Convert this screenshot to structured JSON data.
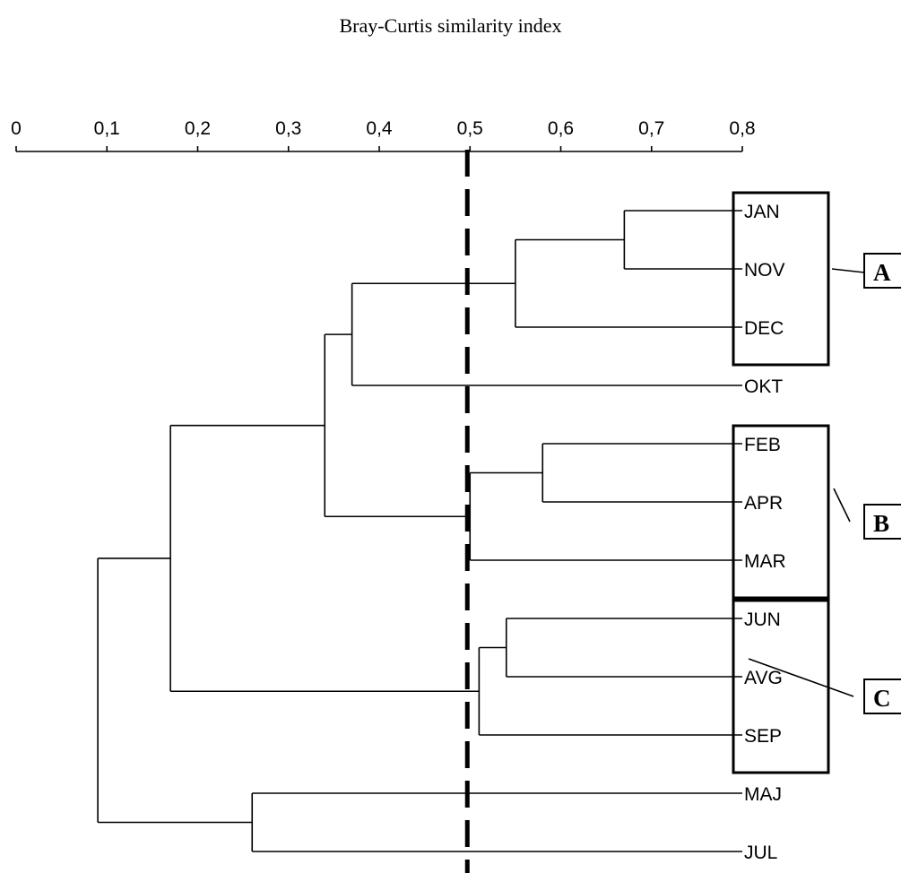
{
  "title": "Bray-Curtis similarity index",
  "chart_data": {
    "type": "dendrogram",
    "axis": {
      "range": [
        0,
        0.8
      ],
      "ticks": [
        0,
        0.1,
        0.2,
        0.3,
        0.4,
        0.5,
        0.6,
        0.7,
        0.8
      ],
      "tick_labels": [
        "0",
        "0,1",
        "0,2",
        "0,3",
        "0,4",
        "0,5",
        "0,6",
        "0,7",
        "0,8"
      ]
    },
    "leaves": [
      "JAN",
      "NOV",
      "DEC",
      "OKT",
      "FEB",
      "APR",
      "MAR",
      "JUN",
      "AVG",
      "SEP",
      "MAJ",
      "JUL"
    ],
    "merges": [
      {
        "members": [
          "JAN",
          "NOV"
        ],
        "similarity": 0.67
      },
      {
        "members": [
          "JAN",
          "NOV",
          "DEC"
        ],
        "similarity": 0.55
      },
      {
        "members": [
          "JAN",
          "NOV",
          "DEC",
          "OKT"
        ],
        "similarity": 0.37
      },
      {
        "members": [
          "FEB",
          "APR"
        ],
        "similarity": 0.58
      },
      {
        "members": [
          "FEB",
          "APR",
          "MAR"
        ],
        "similarity": 0.5
      },
      {
        "members": [
          "JAN",
          "NOV",
          "DEC",
          "OKT",
          "FEB",
          "APR",
          "MAR"
        ],
        "similarity": 0.34
      },
      {
        "members": [
          "JUN",
          "AVG"
        ],
        "similarity": 0.54
      },
      {
        "members": [
          "JUN",
          "AVG",
          "SEP"
        ],
        "similarity": 0.51
      },
      {
        "members": [
          "JAN",
          "NOV",
          "DEC",
          "OKT",
          "FEB",
          "APR",
          "MAR",
          "JUN",
          "AVG",
          "SEP"
        ],
        "similarity": 0.17
      },
      {
        "members": [
          "MAJ",
          "JUL"
        ],
        "similarity": 0.26
      },
      {
        "members": [
          "JAN",
          "NOV",
          "DEC",
          "OKT",
          "FEB",
          "APR",
          "MAR",
          "JUN",
          "AVG",
          "SEP",
          "MAJ",
          "JUL"
        ],
        "similarity": 0.09
      }
    ],
    "cutoff": 0.5,
    "groups": [
      {
        "label": "A",
        "members": [
          "JAN",
          "NOV",
          "DEC"
        ]
      },
      {
        "label": "B",
        "members": [
          "FEB",
          "APR",
          "MAR"
        ]
      },
      {
        "label": "C",
        "members": [
          "JUN",
          "AVG",
          "SEP"
        ]
      }
    ]
  }
}
